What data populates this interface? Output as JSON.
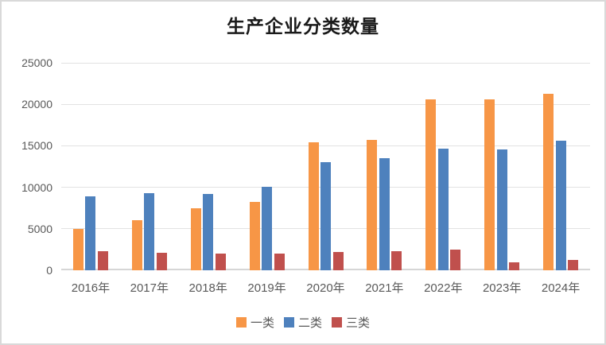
{
  "chart_data": {
    "type": "bar",
    "title": "生产企业分类数量",
    "categories": [
      "2016年",
      "2017年",
      "2018年",
      "2019年",
      "2020年",
      "2021年",
      "2022年",
      "2023年",
      "2024年"
    ],
    "series": [
      {
        "name": "一类",
        "color": "#F79646",
        "values": [
          5000,
          6000,
          7500,
          8200,
          15400,
          15700,
          20600,
          20600,
          21300
        ]
      },
      {
        "name": "二类",
        "color": "#4E81BD",
        "values": [
          8900,
          9300,
          9200,
          10100,
          13000,
          13500,
          14700,
          14600,
          15600
        ]
      },
      {
        "name": "三类",
        "color": "#C0504D",
        "values": [
          2300,
          2100,
          2000,
          2000,
          2200,
          2300,
          2500,
          1000,
          1200
        ]
      }
    ],
    "ylim": [
      0,
      25000
    ],
    "ytick_step": 5000,
    "yticks": [
      "0",
      "5000",
      "10000",
      "15000",
      "20000",
      "25000"
    ],
    "xlabel": "",
    "ylabel": "",
    "grid": true,
    "legend_position": "bottom"
  },
  "colors": {
    "grid": "#e2e2e2",
    "axis_line": "#d6d6d6",
    "tick_text": "#595959",
    "title_text": "#1a1a1a",
    "frame_border": "#d9d9d9",
    "background": "#ffffff"
  }
}
